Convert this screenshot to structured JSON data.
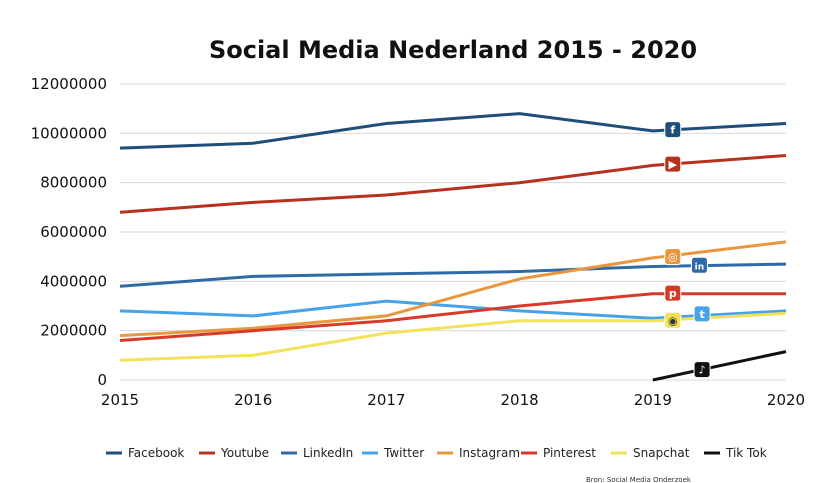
{
  "chart_data": {
    "type": "line",
    "title": "Social Media Nederland 2015 - 2020",
    "xlabel": "",
    "ylabel": "",
    "x": [
      2015,
      2016,
      2017,
      2018,
      2019,
      2020
    ],
    "x_tick_labels": [
      "2015",
      "2016",
      "2017",
      "2018",
      "2019",
      "2020"
    ],
    "ylim": [
      0,
      12000000
    ],
    "y_ticks": [
      0,
      2000000,
      4000000,
      6000000,
      8000000,
      10000000,
      12000000
    ],
    "y_tick_labels": [
      "0",
      "2000000",
      "4000000",
      "6000000",
      "8000000",
      "10000000",
      "12000000"
    ],
    "grid": true,
    "legend_position": "bottom",
    "series": [
      {
        "name": "Facebook",
        "color": "#1f4e79",
        "icon": "facebook-icon",
        "icon_glyph": "f",
        "icon_at": [
          2019.15,
          10150000
        ],
        "points": [
          [
            2015,
            9400000
          ],
          [
            2016,
            9600000
          ],
          [
            2017,
            10400000
          ],
          [
            2018,
            10800000
          ],
          [
            2019,
            10100000
          ],
          [
            2020,
            10400000
          ]
        ]
      },
      {
        "name": "Youtube",
        "color": "#b7311f",
        "icon": "youtube-icon",
        "icon_glyph": "▶",
        "icon_at": [
          2019.15,
          8750000
        ],
        "points": [
          [
            2015,
            6800000
          ],
          [
            2016,
            7200000
          ],
          [
            2017,
            7500000
          ],
          [
            2018,
            8000000
          ],
          [
            2019,
            8700000
          ],
          [
            2020,
            9100000
          ]
        ]
      },
      {
        "name": "LinkedIn",
        "color": "#2e6ba6",
        "icon": "linkedin-icon",
        "icon_glyph": "in",
        "icon_at": [
          2019.35,
          4650000
        ],
        "points": [
          [
            2015,
            3800000
          ],
          [
            2016,
            4200000
          ],
          [
            2017,
            4300000
          ],
          [
            2018,
            4400000
          ],
          [
            2019,
            4600000
          ],
          [
            2020,
            4700000
          ]
        ]
      },
      {
        "name": "Twitter",
        "color": "#47a3e8",
        "icon": "twitter-icon",
        "icon_glyph": "t",
        "icon_at": [
          2019.37,
          2680000
        ],
        "points": [
          [
            2015,
            2800000
          ],
          [
            2016,
            2600000
          ],
          [
            2017,
            3200000
          ],
          [
            2018,
            2800000
          ],
          [
            2019,
            2500000
          ],
          [
            2020,
            2800000
          ]
        ]
      },
      {
        "name": "Instagram",
        "color": "#e9973e",
        "icon": "instagram-icon",
        "icon_glyph": "◎",
        "icon_at": [
          2019.15,
          5000000
        ],
        "points": [
          [
            2015,
            1800000
          ],
          [
            2016,
            2100000
          ],
          [
            2017,
            2600000
          ],
          [
            2018,
            4100000
          ],
          [
            2019,
            4950000
          ],
          [
            2020,
            5600000
          ]
        ]
      },
      {
        "name": "Pinterest",
        "color": "#d63b2a",
        "icon": "pinterest-icon",
        "icon_glyph": "p",
        "icon_at": [
          2019.15,
          3520000
        ],
        "points": [
          [
            2015,
            1600000
          ],
          [
            2016,
            2000000
          ],
          [
            2017,
            2400000
          ],
          [
            2018,
            3000000
          ],
          [
            2019,
            3500000
          ],
          [
            2020,
            3500000
          ]
        ]
      },
      {
        "name": "Snapchat",
        "color": "#f2e25a",
        "icon": "snapchat-icon",
        "icon_glyph": "◉",
        "icon_at": [
          2019.15,
          2420000
        ],
        "points": [
          [
            2015,
            800000
          ],
          [
            2016,
            1000000
          ],
          [
            2017,
            1900000
          ],
          [
            2018,
            2400000
          ],
          [
            2019,
            2400000
          ],
          [
            2020,
            2700000
          ]
        ]
      },
      {
        "name": "Tik Tok",
        "color": "#111111",
        "icon": "tiktok-icon",
        "icon_glyph": "♪",
        "icon_at": [
          2019.37,
          420000
        ],
        "points": [
          [
            2019,
            0
          ],
          [
            2020,
            1150000
          ]
        ]
      }
    ]
  }
}
